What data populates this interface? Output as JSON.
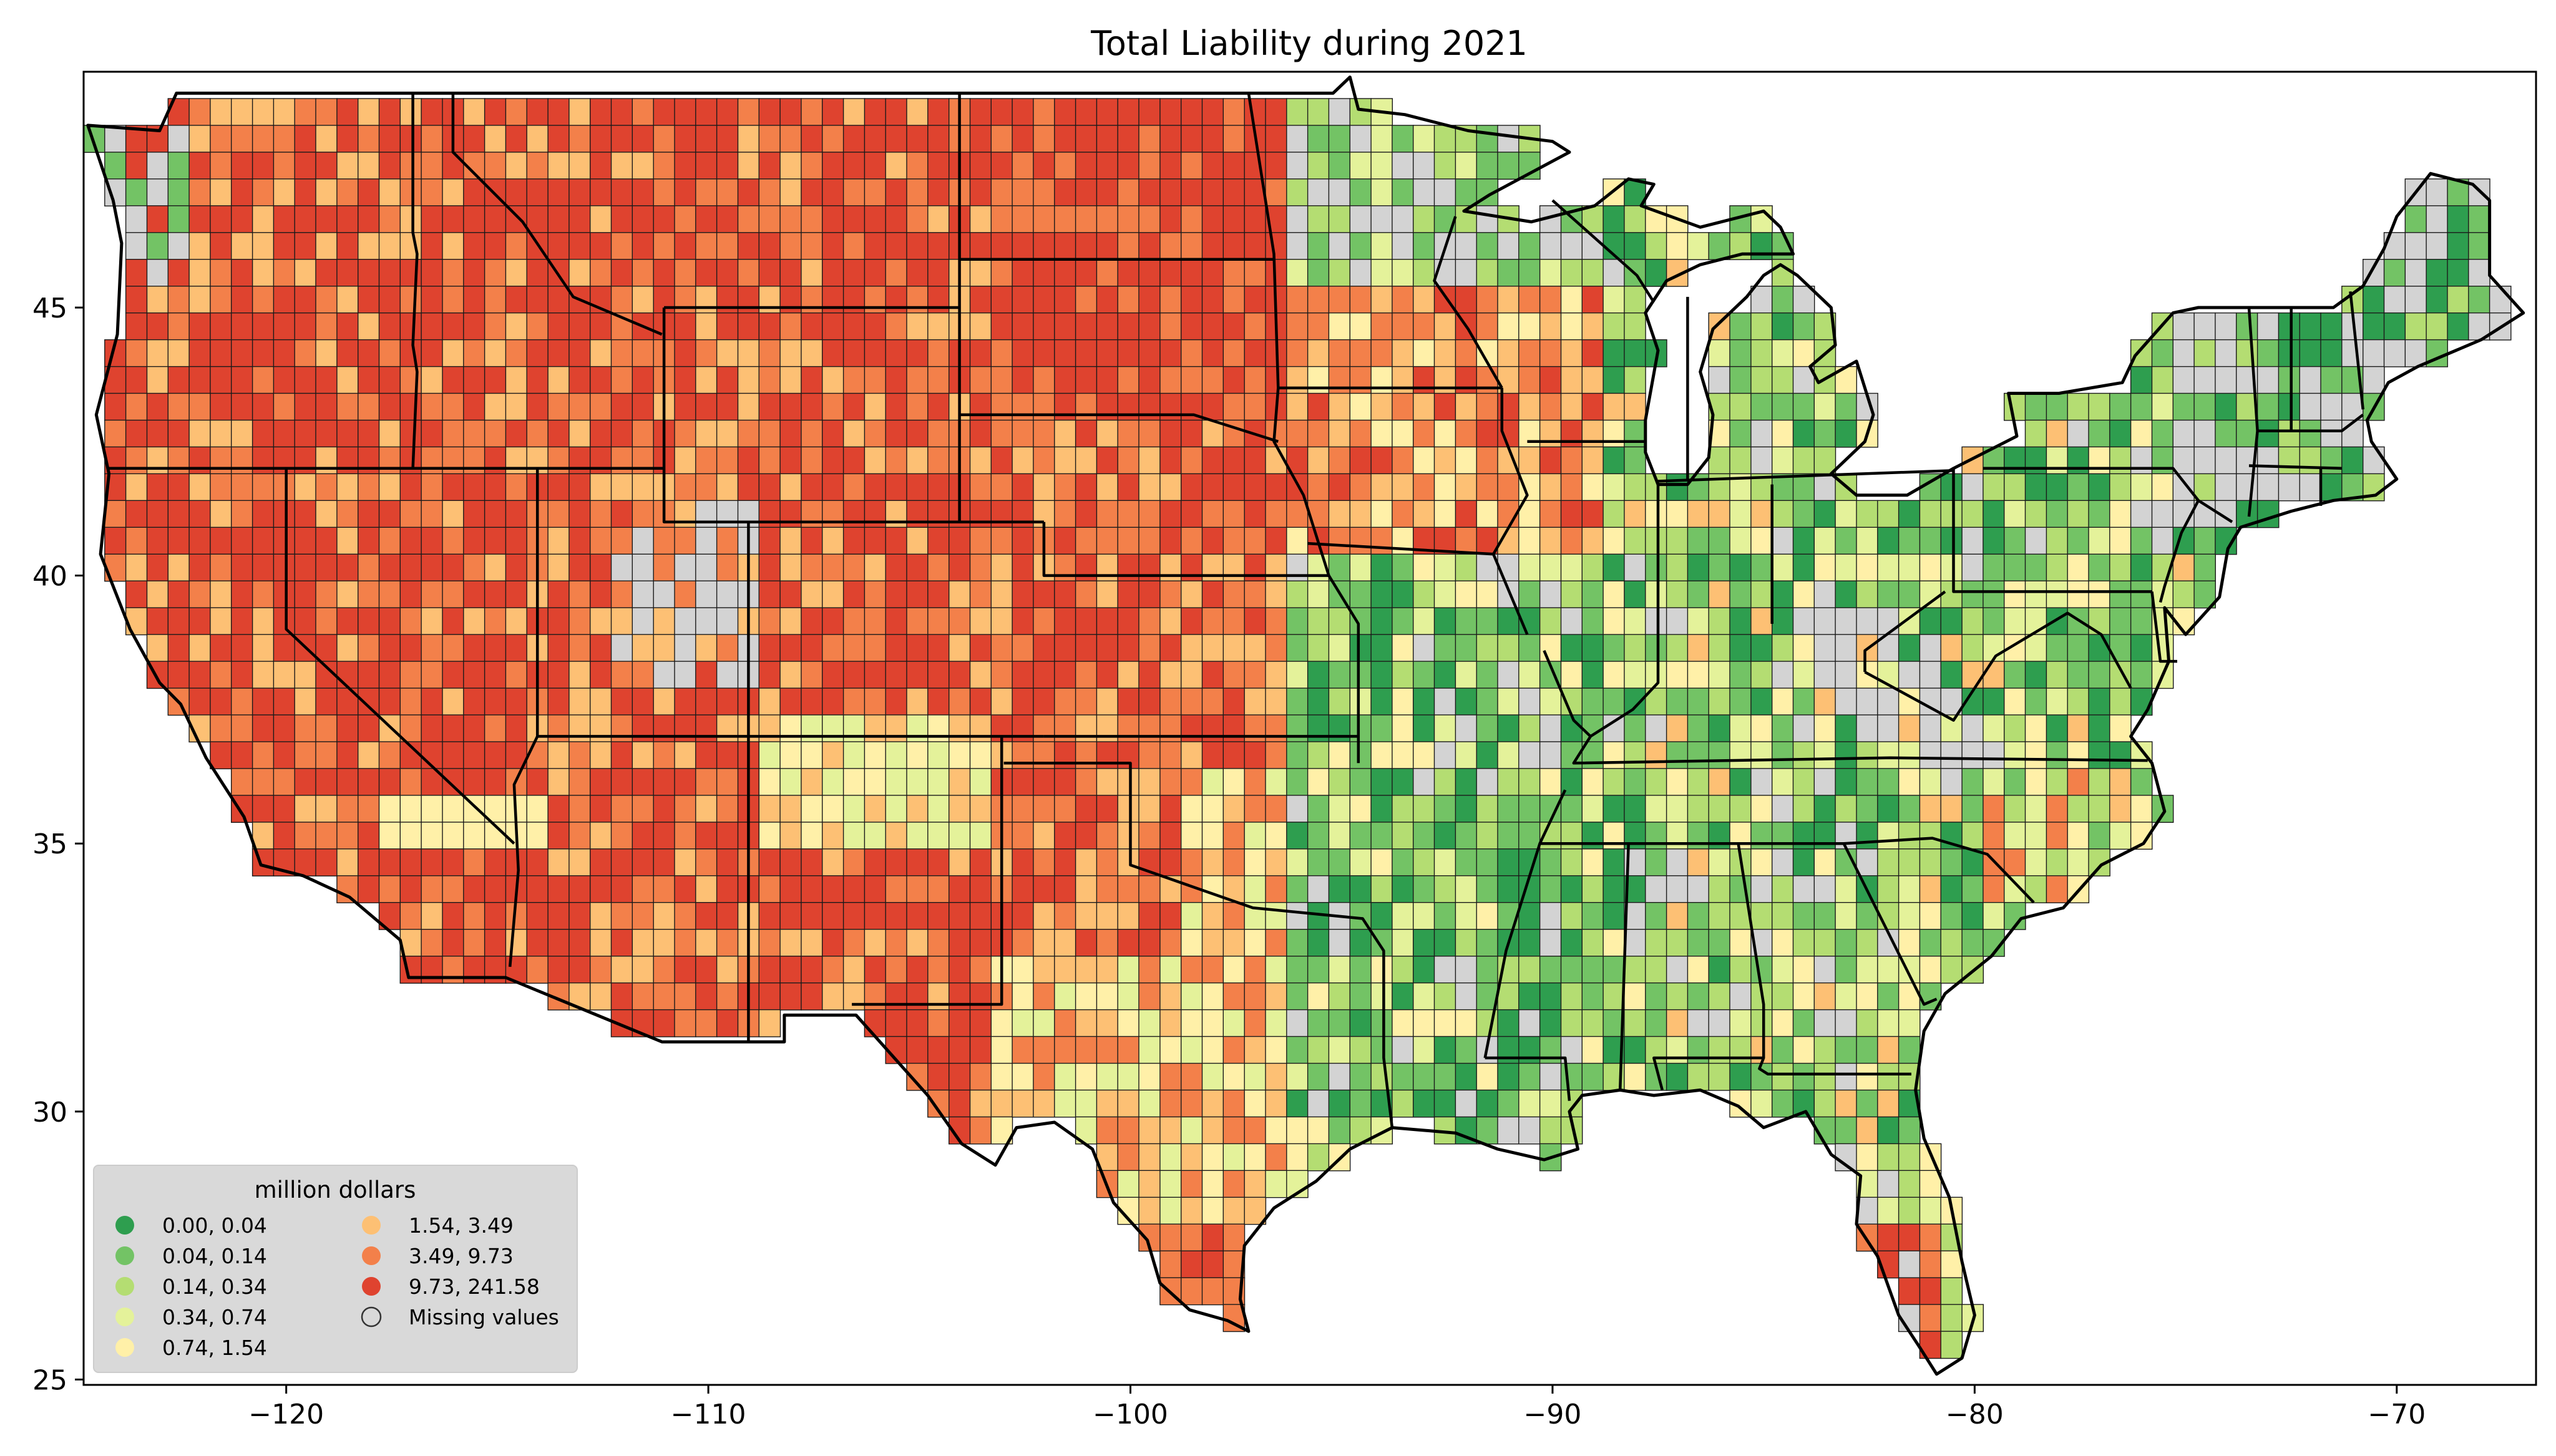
{
  "title": "Total Liability during 2021",
  "chart_data": {
    "type": "choropleth-map",
    "title": "Total Liability during 2021",
    "xlim": [
      -124.8,
      -66.7
    ],
    "ylim": [
      24.9,
      49.4
    ],
    "xticks": [
      {
        "value": -120,
        "label": "−120"
      },
      {
        "value": -110,
        "label": "−110"
      },
      {
        "value": -100,
        "label": "−100"
      },
      {
        "value": -90,
        "label": "−90"
      },
      {
        "value": -80,
        "label": "−80"
      },
      {
        "value": -70,
        "label": "−70"
      }
    ],
    "yticks": [
      {
        "value": 25,
        "label": "25"
      },
      {
        "value": 30,
        "label": "30"
      },
      {
        "value": 35,
        "label": "35"
      },
      {
        "value": 40,
        "label": "40"
      },
      {
        "value": 45,
        "label": "45"
      }
    ],
    "legend": {
      "title": "million dollars",
      "placement": "lower-left",
      "entries": [
        {
          "label": "0.00,   0.04",
          "color": "#2e9e4f"
        },
        {
          "label": "0.04,   0.14",
          "color": "#73c365"
        },
        {
          "label": "0.14,   0.34",
          "color": "#b4dd72"
        },
        {
          "label": "0.34,   0.74",
          "color": "#e4f29a"
        },
        {
          "label": "0.74,   1.54",
          "color": "#fff0a8"
        },
        {
          "label": "1.54,   3.49",
          "color": "#fdc074"
        },
        {
          "label": "3.49,   9.73",
          "color": "#f3804a"
        },
        {
          "label": "9.73, 241.58",
          "color": "#df432f"
        },
        {
          "label": "Missing values",
          "color": "#d3d3d3"
        }
      ]
    },
    "missing_color": "#d3d3d3",
    "state_border_color": "#000000"
  }
}
